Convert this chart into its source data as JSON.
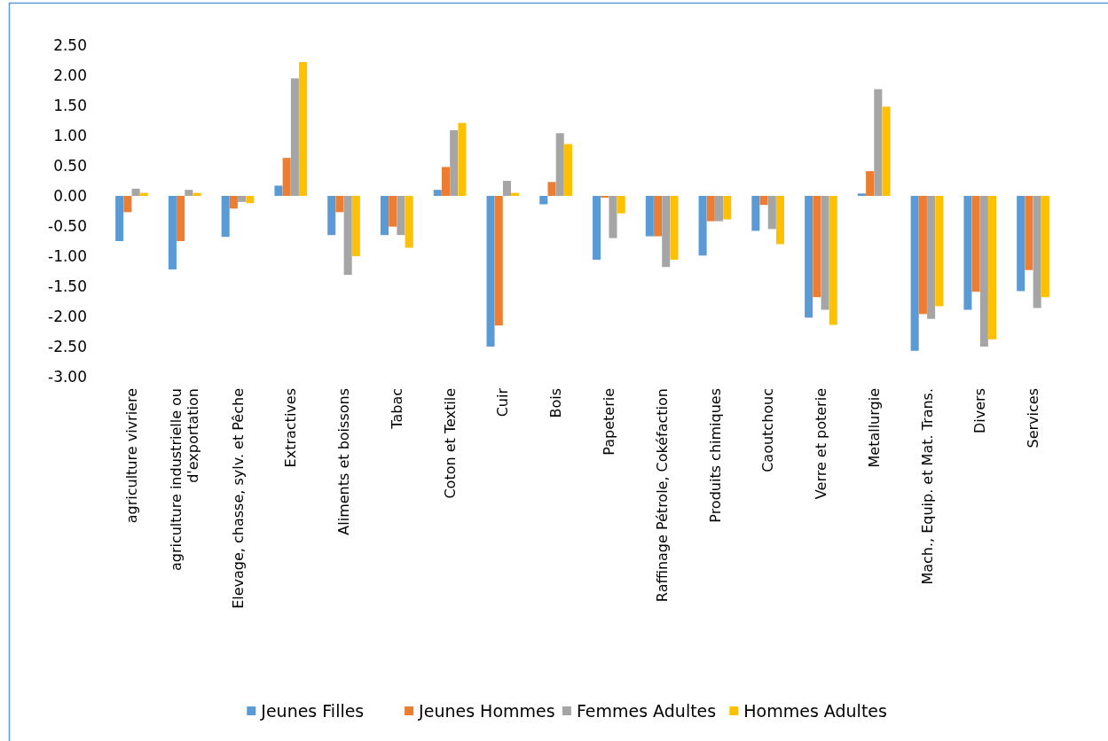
{
  "chart_data": {
    "type": "bar",
    "categories": [
      "agriculture vivriere",
      "agriculture industrielle ou d'exportation",
      "Elevage, chasse, sylv. et Pêche",
      "Extractives",
      "Aliments et boissons",
      "Tabac",
      "Coton et Textile",
      "Cuir",
      "Bois",
      "Papeterie",
      "Raffinage Pétrole, Cokéfaction",
      "Produits chimiques",
      "Caoutchouc",
      "Verre et poterie",
      "Metallurgie",
      "Mach., Equip. et Mat. Trans.",
      "Divers",
      "Services"
    ],
    "series": [
      {
        "name": "Jeunes Filles",
        "color": "#5b9bd5",
        "values": [
          -0.75,
          -1.22,
          -0.68,
          0.17,
          -0.65,
          -0.65,
          0.1,
          -2.5,
          -0.14,
          -1.06,
          -0.67,
          -0.99,
          -0.58,
          -2.02,
          0.04,
          -2.57,
          -1.89,
          -1.58
        ]
      },
      {
        "name": "Jeunes Hommes",
        "color": "#ed7d31",
        "values": [
          -0.27,
          -0.75,
          -0.21,
          0.63,
          -0.27,
          -0.51,
          0.48,
          -2.15,
          0.23,
          -0.03,
          -0.67,
          -0.42,
          -0.15,
          -1.68,
          0.41,
          -1.96,
          -1.59,
          -1.23
        ]
      },
      {
        "name": "Femmes Adultes",
        "color": "#a5a5a5",
        "values": [
          0.12,
          0.1,
          -0.1,
          1.95,
          -1.31,
          -0.65,
          1.09,
          0.25,
          1.04,
          -0.7,
          -1.18,
          -0.42,
          -0.55,
          -1.89,
          1.77,
          -2.04,
          -2.5,
          -1.86
        ]
      },
      {
        "name": "Hommes Adultes",
        "color": "#ffc000",
        "values": [
          0.05,
          0.05,
          -0.12,
          2.22,
          -1.0,
          -0.86,
          1.21,
          0.05,
          0.86,
          -0.29,
          -1.06,
          -0.39,
          -0.8,
          -2.14,
          1.48,
          -1.83,
          -2.38,
          -1.68
        ]
      }
    ],
    "ylim": [
      -3.0,
      2.5
    ],
    "yticks": [
      {
        "value": 2.5,
        "label": "2.50"
      },
      {
        "value": 2.0,
        "label": "2.00"
      },
      {
        "value": 1.5,
        "label": "1.50"
      },
      {
        "value": 1.0,
        "label": "1.00"
      },
      {
        "value": 0.5,
        "label": "0.50"
      },
      {
        "value": 0.0,
        "label": "0.00"
      },
      {
        "value": -0.5,
        "label": "-0.50"
      },
      {
        "value": -1.0,
        "label": "-1.00"
      },
      {
        "value": -1.5,
        "label": "-1.50"
      },
      {
        "value": -2.0,
        "label": "-2.00"
      },
      {
        "value": -2.5,
        "label": "-2.50"
      },
      {
        "value": -3.0,
        "label": "-3.00"
      }
    ],
    "grid": false,
    "legend": "bottom"
  }
}
